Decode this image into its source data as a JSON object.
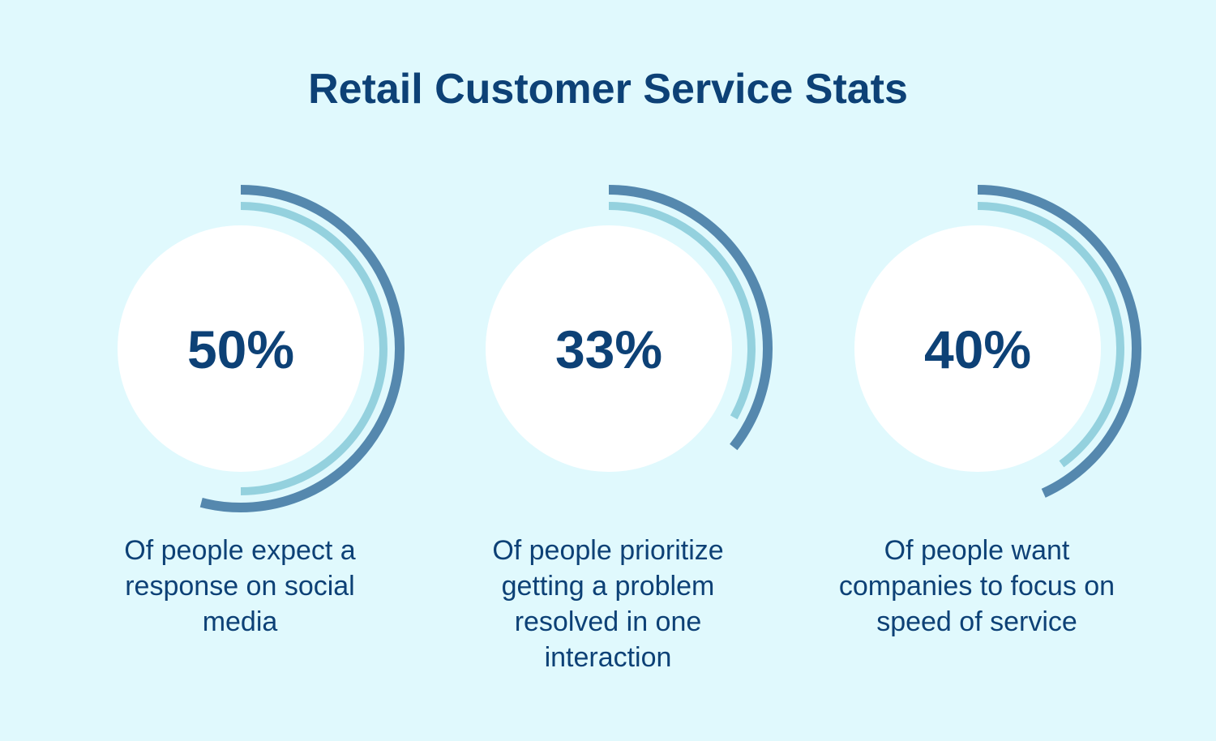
{
  "title": "Retail Customer Service Stats",
  "colors": {
    "background": "#e0f9fd",
    "text": "#0d4176",
    "circle": "#ffffff",
    "outer_arc": "#5588ae",
    "inner_arc": "#94d1de"
  },
  "chart_data": {
    "type": "radial-progress",
    "title": "Retail Customer Service Stats",
    "max": 100,
    "items": [
      {
        "value": 50,
        "label": "50%",
        "description": "Of people expect a response on social media"
      },
      {
        "value": 33,
        "label": "33%",
        "description": "Of people prioritize getting a problem resolved in one interaction"
      },
      {
        "value": 40,
        "label": "40%",
        "description": "Of people want companies to focus on speed of service"
      }
    ]
  }
}
